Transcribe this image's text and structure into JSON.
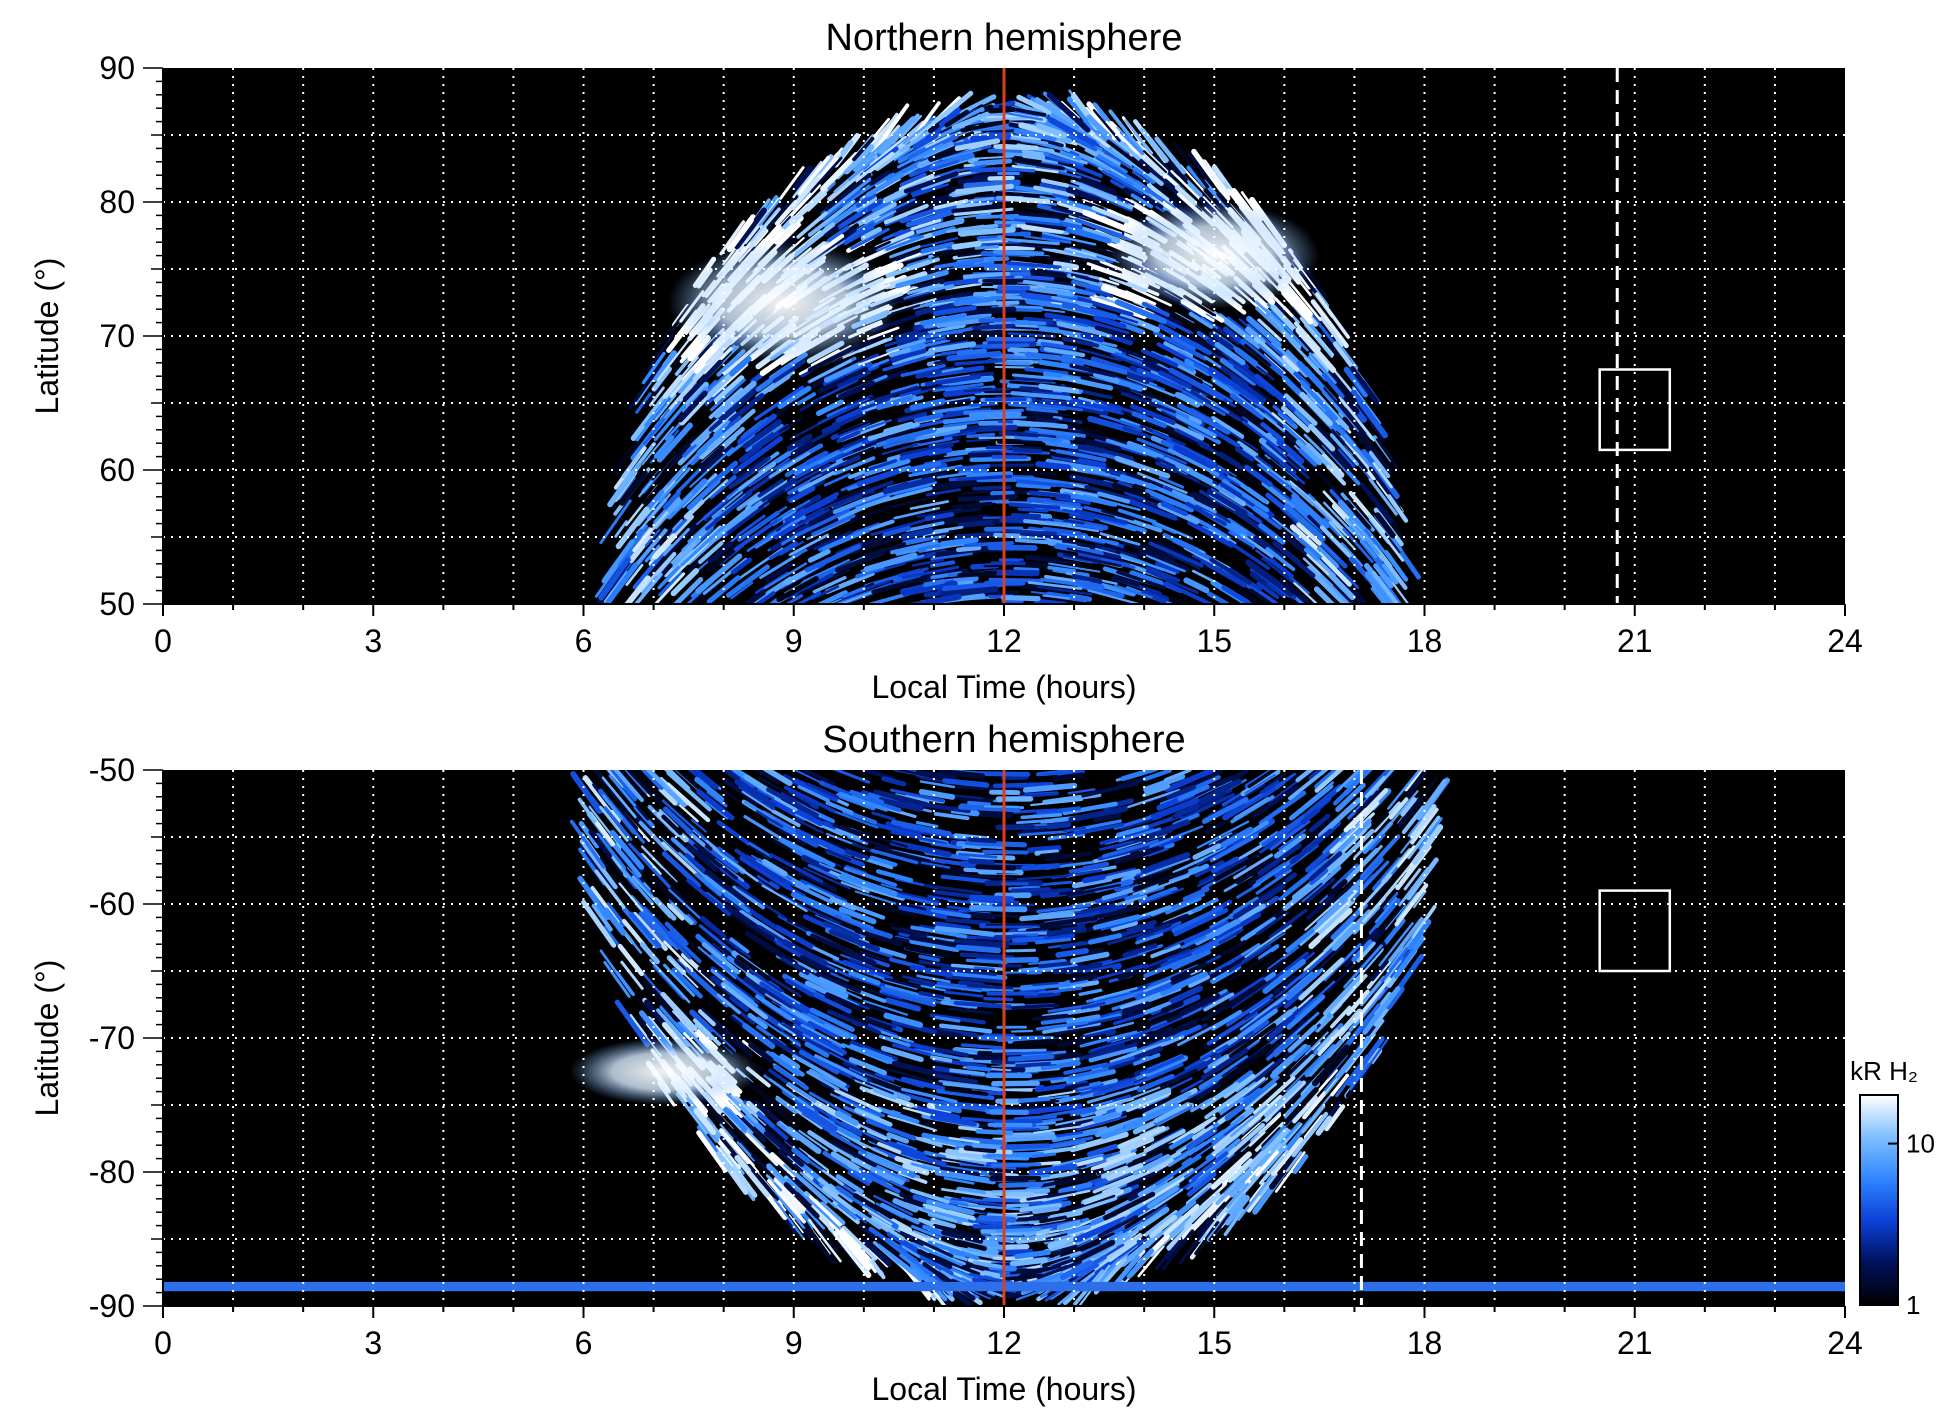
{
  "chart_data": [
    {
      "type": "heatmap",
      "title": "Northern hemisphere",
      "xlabel": "Local Time (hours)",
      "ylabel": "Latitude (°)",
      "xlim": [
        0,
        24
      ],
      "ylim": [
        50,
        90
      ],
      "xticks": [
        "0",
        "3",
        "6",
        "9",
        "12",
        "15",
        "18",
        "21",
        "24"
      ],
      "yticks": [
        "50",
        "60",
        "70",
        "80",
        "90"
      ],
      "grid": true,
      "emission_extent": {
        "lt_start": 6.4,
        "lt_end": 17.7,
        "lat_min": 50,
        "lat_max": 87
      },
      "bright_arcs": [
        {
          "lt": [
            7.2,
            10.5
          ],
          "lat": [
            68,
            77
          ],
          "intensity": "bright"
        },
        {
          "lt": [
            13.5,
            16.5
          ],
          "lat": [
            72,
            80
          ],
          "intensity": "bright"
        }
      ],
      "noon_line_lt": 12,
      "dashed_line_lt": 20.75,
      "box": {
        "lt": [
          20.5,
          21.5
        ],
        "lat": [
          61.5,
          67.5
        ]
      }
    },
    {
      "type": "heatmap",
      "title": "Southern hemisphere",
      "xlabel": "Local Time (hours)",
      "ylabel": "Latitude (°)",
      "xlim": [
        0,
        24
      ],
      "ylim": [
        -90,
        -50
      ],
      "xticks": [
        "0",
        "3",
        "6",
        "9",
        "12",
        "15",
        "18",
        "21",
        "24"
      ],
      "yticks": [
        "-50",
        "-60",
        "-70",
        "-80",
        "-90"
      ],
      "grid": true,
      "emission_extent": {
        "lt_start": 6.0,
        "lt_end": 18.2,
        "lat_min": -89,
        "lat_max": -50
      },
      "bright_arcs": [
        {
          "lt": [
            5.8,
            8.5
          ],
          "lat": [
            -75,
            -70
          ],
          "intensity": "bright"
        }
      ],
      "noon_line_lt": 12,
      "dashed_line_lt": 17.1,
      "box": {
        "lt": [
          20.5,
          21.5
        ],
        "lat": [
          -65,
          -59
        ]
      }
    }
  ],
  "colorbar": {
    "label": "kR H₂",
    "ticks": [
      "1",
      "10"
    ],
    "colors": [
      "#000000",
      "#00115a",
      "#0b3fd6",
      "#2f86ff",
      "#7fbfff",
      "#ffffff"
    ]
  },
  "colors": {
    "noon_line": "#d9411e",
    "background": "#000000",
    "grid": "#ffffff"
  }
}
